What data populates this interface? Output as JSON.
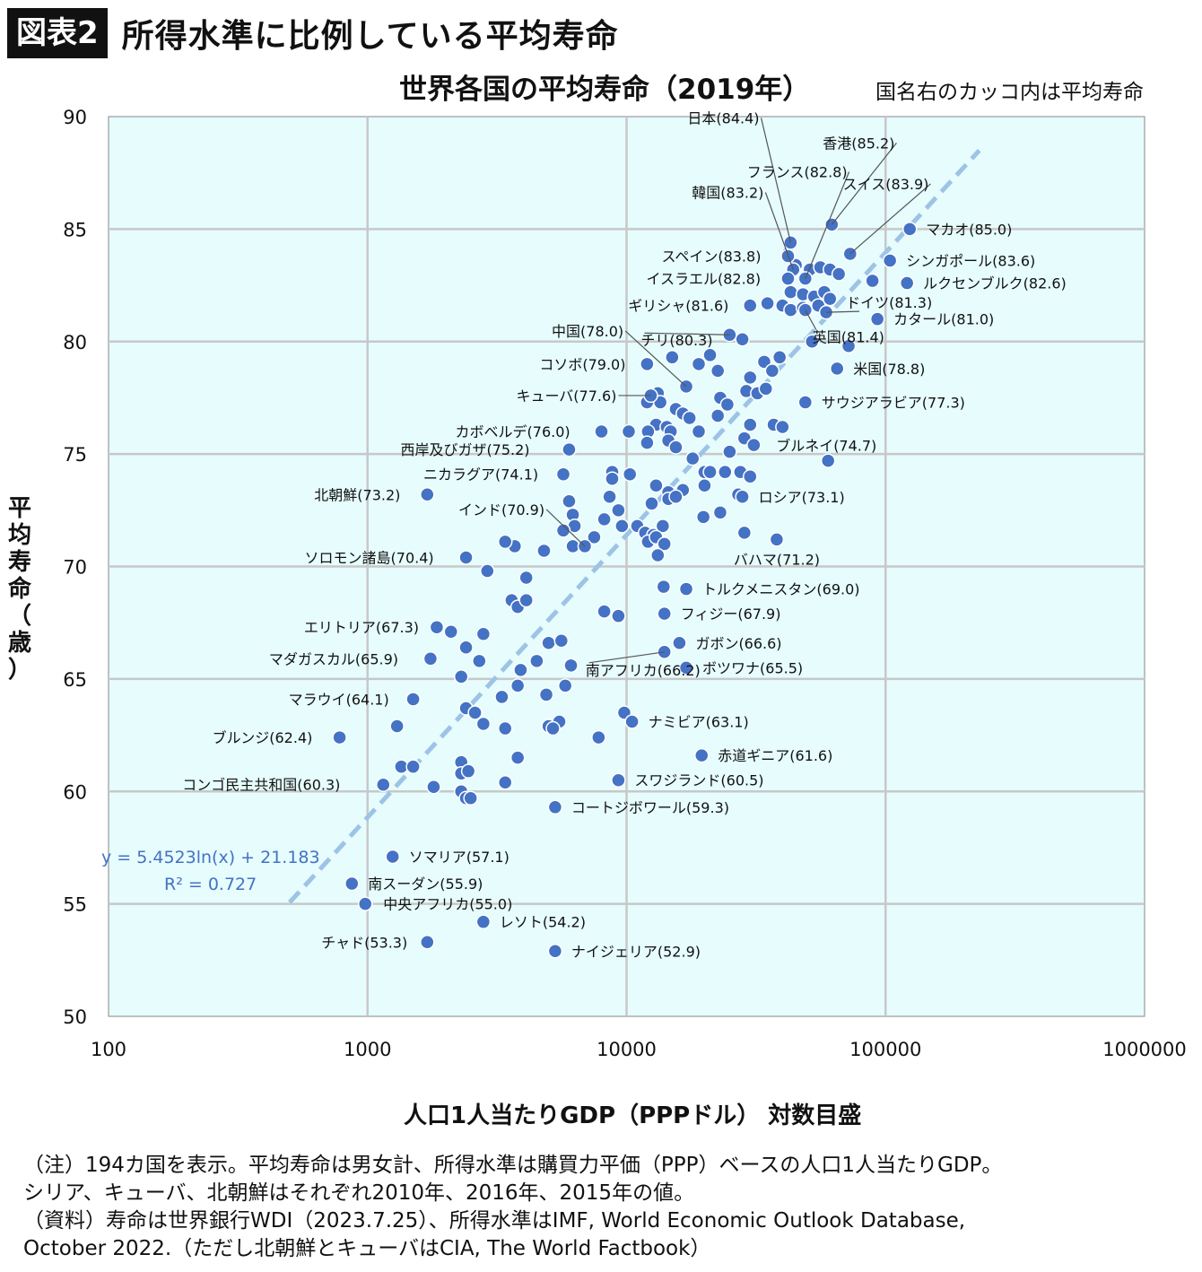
{
  "header": {
    "badge": "図表2",
    "title": "所得水準に比例している平均寿命"
  },
  "notes": [
    "（注）194カ国を表示。平均寿命は男女計、所得水準は購買力平価（PPP）ベースの人口1人当たりGDP。",
    "シリア、キューバ、北朝鮮はそれぞれ2010年、2016年、2015年の値。",
    "（資料）寿命は世界銀行WDI（2023.7.25）、所得水準はIMF, World Economic Outlook Database,",
    "October 2022.（ただし北朝鮮とキューバはCIA, The World Factbook）"
  ],
  "colors": {
    "plot_bg": "#e6fcfd",
    "marker": "#4472c4",
    "trend": "#9dc3e6",
    "grid": "#c8c8c8",
    "equation": "#4472c4"
  },
  "chart_data": {
    "type": "scatter",
    "title": "世界各国の平均寿命（2019年）",
    "subtitle": "国名右のカッコ内は平均寿命",
    "xlabel": "人口1人当たりGDP（PPPドル） 対数目盛",
    "ylabel": "平均寿命（歳）",
    "x_scale": "log",
    "xlim": [
      100,
      1000000
    ],
    "ylim": [
      50,
      90
    ],
    "x_ticks": [
      "100",
      "1000",
      "10000",
      "100000",
      "1000000"
    ],
    "y_ticks": [
      "50",
      "55",
      "60",
      "65",
      "70",
      "75",
      "80",
      "85",
      "90"
    ],
    "grid": true,
    "trendline": {
      "type": "log",
      "slope": 5.4523,
      "intercept": 21.183,
      "x_range": [
        500,
        230000
      ],
      "equation": "y = 5.4523ln(x) + 21.183",
      "r2_label": "R² = 0.727"
    },
    "labeled_points": [
      {
        "label": "香港(85.2)",
        "x": 62000,
        "y": 85.2
      },
      {
        "label": "フランス(82.8)",
        "x": 49000,
        "y": 82.8
      },
      {
        "label": "スイス(83.9)",
        "x": 73000,
        "y": 83.9
      },
      {
        "label": "日本(84.4)",
        "x": 43000,
        "y": 84.4
      },
      {
        "label": "マカオ(85.0)",
        "x": 124000,
        "y": 85.0
      },
      {
        "label": "韓国(83.2)",
        "x": 44000,
        "y": 83.2
      },
      {
        "label": "スペイン(83.8)",
        "x": 42000,
        "y": 83.8
      },
      {
        "label": "シンガポール(83.6)",
        "x": 104000,
        "y": 83.6
      },
      {
        "label": "イスラエル(82.8)",
        "x": 42000,
        "y": 82.8
      },
      {
        "label": "ルクセンブルク(82.6)",
        "x": 121000,
        "y": 82.6
      },
      {
        "label": "ギリシャ(81.6)",
        "x": 30000,
        "y": 81.6
      },
      {
        "label": "ドイツ(81.3)",
        "x": 59000,
        "y": 81.3
      },
      {
        "label": "カタール(81.0)",
        "x": 93000,
        "y": 81.0
      },
      {
        "label": "英国(81.4)",
        "x": 49000,
        "y": 81.4
      },
      {
        "label": "中国(78.0)",
        "x": 17000,
        "y": 78.0
      },
      {
        "label": "チリ(80.3)",
        "x": 25000,
        "y": 80.3
      },
      {
        "label": "米国(78.8)",
        "x": 65000,
        "y": 78.8
      },
      {
        "label": "コソボ(79.0)",
        "x": 12000,
        "y": 79.0
      },
      {
        "label": "キューバ(77.6)",
        "x": 12400,
        "y": 77.6
      },
      {
        "label": "サウジアラビア(77.3)",
        "x": 49000,
        "y": 77.3
      },
      {
        "label": "カボベルデ(76.0)",
        "x": 8000,
        "y": 76.0
      },
      {
        "label": "西岸及びガザ(75.2)",
        "x": 6000,
        "y": 75.2
      },
      {
        "label": "ブルネイ(74.7)",
        "x": 60000,
        "y": 74.7
      },
      {
        "label": "ニカラグア(74.1)",
        "x": 5700,
        "y": 74.1
      },
      {
        "label": "北朝鮮(73.2)",
        "x": 1700,
        "y": 73.2
      },
      {
        "label": "ロシア(73.1)",
        "x": 28000,
        "y": 73.1
      },
      {
        "label": "インド(70.9)",
        "x": 6900,
        "y": 70.9
      },
      {
        "label": "バハマ(71.2)",
        "x": 38000,
        "y": 71.2
      },
      {
        "label": "ソロモン諸島(70.4)",
        "x": 2400,
        "y": 70.4
      },
      {
        "label": "トルクメニスタン(69.0)",
        "x": 17000,
        "y": 69.0
      },
      {
        "label": "フィジー(67.9)",
        "x": 14000,
        "y": 67.9
      },
      {
        "label": "エリトリア(67.3)",
        "x": 1850,
        "y": 67.3
      },
      {
        "label": "ガボン(66.6)",
        "x": 16000,
        "y": 66.6
      },
      {
        "label": "マダガスカル(65.9)",
        "x": 1750,
        "y": 65.9
      },
      {
        "label": "南アフリカ(66.2)",
        "x": 14000,
        "y": 66.2
      },
      {
        "label": "ボツワナ(65.5)",
        "x": 17000,
        "y": 65.5
      },
      {
        "label": "マラウイ(64.1)",
        "x": 1500,
        "y": 64.1
      },
      {
        "label": "ナミビア(63.1)",
        "x": 10500,
        "y": 63.1
      },
      {
        "label": "ブルンジ(62.4)",
        "x": 780,
        "y": 62.4
      },
      {
        "label": "赤道ギニア(61.6)",
        "x": 19500,
        "y": 61.6
      },
      {
        "label": "スワジランド(60.5)",
        "x": 9300,
        "y": 60.5
      },
      {
        "label": "コンゴ民主共和国(60.3)",
        "x": 1150,
        "y": 60.3
      },
      {
        "label": "コートジボワール(59.3)",
        "x": 5300,
        "y": 59.3
      },
      {
        "label": "ソマリア(57.1)",
        "x": 1250,
        "y": 57.1
      },
      {
        "label": "南スーダン(55.9)",
        "x": 870,
        "y": 55.9
      },
      {
        "label": "中央アフリカ(55.0)",
        "x": 980,
        "y": 55.0
      },
      {
        "label": "レソト(54.2)",
        "x": 2800,
        "y": 54.2
      },
      {
        "label": "チャド(53.3)",
        "x": 1700,
        "y": 53.3
      },
      {
        "label": "ナイジェリア(52.9)",
        "x": 5300,
        "y": 52.9
      }
    ],
    "other_points": [
      [
        42000,
        83.9
      ],
      [
        45000,
        83.4
      ],
      [
        51000,
        83.2
      ],
      [
        56000,
        83.3
      ],
      [
        61000,
        83.2
      ],
      [
        66000,
        83.0
      ],
      [
        43000,
        82.2
      ],
      [
        48000,
        82.1
      ],
      [
        53000,
        82.0
      ],
      [
        58000,
        82.2
      ],
      [
        89000,
        82.7
      ],
      [
        35000,
        81.7
      ],
      [
        40000,
        81.6
      ],
      [
        43000,
        81.4
      ],
      [
        48000,
        81.5
      ],
      [
        55000,
        81.6
      ],
      [
        61000,
        81.9
      ],
      [
        52000,
        80.0
      ],
      [
        28000,
        80.1
      ],
      [
        72000,
        79.8
      ],
      [
        15000,
        79.3
      ],
      [
        19000,
        79.0
      ],
      [
        21000,
        79.4
      ],
      [
        22500,
        78.7
      ],
      [
        30000,
        78.4
      ],
      [
        34000,
        79.1
      ],
      [
        39000,
        79.3
      ],
      [
        13200,
        77.7
      ],
      [
        13500,
        77.3
      ],
      [
        15500,
        77.0
      ],
      [
        23000,
        77.5
      ],
      [
        24500,
        77.2
      ],
      [
        29000,
        77.8
      ],
      [
        32000,
        77.7
      ],
      [
        34500,
        77.9
      ],
      [
        36500,
        78.7
      ],
      [
        12000,
        77.3
      ],
      [
        13000,
        76.3
      ],
      [
        14300,
        76.2
      ],
      [
        14800,
        76.0
      ],
      [
        16500,
        76.8
      ],
      [
        17500,
        76.6
      ],
      [
        19000,
        76.0
      ],
      [
        22500,
        76.7
      ],
      [
        30000,
        76.3
      ],
      [
        37000,
        76.3
      ],
      [
        40000,
        76.2
      ],
      [
        10200,
        76.0
      ],
      [
        12100,
        76.0
      ],
      [
        12000,
        75.5
      ],
      [
        14500,
        75.6
      ],
      [
        15500,
        75.3
      ],
      [
        18000,
        74.8
      ],
      [
        25000,
        75.1
      ],
      [
        28500,
        75.7
      ],
      [
        31000,
        75.4
      ],
      [
        8800,
        74.2
      ],
      [
        10300,
        74.1
      ],
      [
        20000,
        74.2
      ],
      [
        21000,
        74.2
      ],
      [
        24000,
        74.2
      ],
      [
        27500,
        74.2
      ],
      [
        30000,
        74.0
      ],
      [
        8800,
        73.9
      ],
      [
        13000,
        73.6
      ],
      [
        14500,
        73.3
      ],
      [
        16500,
        73.4
      ],
      [
        20000,
        73.6
      ],
      [
        27000,
        73.2
      ],
      [
        6000,
        72.9
      ],
      [
        8600,
        73.1
      ],
      [
        12500,
        72.8
      ],
      [
        14500,
        73.0
      ],
      [
        15500,
        73.1
      ],
      [
        6200,
        72.3
      ],
      [
        6300,
        71.8
      ],
      [
        7500,
        71.3
      ],
      [
        8200,
        72.1
      ],
      [
        9300,
        72.5
      ],
      [
        9600,
        71.8
      ],
      [
        11000,
        71.8
      ],
      [
        11800,
        71.5
      ],
      [
        12700,
        71.4
      ],
      [
        13800,
        71.8
      ],
      [
        19800,
        72.2
      ],
      [
        23000,
        72.4
      ],
      [
        5700,
        71.6
      ],
      [
        3700,
        70.9
      ],
      [
        4800,
        70.7
      ],
      [
        6200,
        70.9
      ],
      [
        12100,
        71.1
      ],
      [
        13000,
        71.3
      ],
      [
        14000,
        71.0
      ],
      [
        28500,
        71.5
      ],
      [
        3400,
        71.1
      ],
      [
        13200,
        70.5
      ],
      [
        2900,
        69.8
      ],
      [
        4100,
        69.5
      ],
      [
        3600,
        68.5
      ],
      [
        3800,
        68.2
      ],
      [
        4100,
        68.5
      ],
      [
        8200,
        68.0
      ],
      [
        9300,
        67.8
      ],
      [
        13900,
        69.1
      ],
      [
        2100,
        67.1
      ],
      [
        2800,
        67.0
      ],
      [
        5000,
        66.6
      ],
      [
        5600,
        66.7
      ],
      [
        2400,
        66.4
      ],
      [
        2700,
        65.8
      ],
      [
        6100,
        65.6
      ],
      [
        3900,
        65.4
      ],
      [
        4500,
        65.8
      ],
      [
        2300,
        65.1
      ],
      [
        3800,
        64.7
      ],
      [
        4900,
        64.3
      ],
      [
        5800,
        64.7
      ],
      [
        2400,
        63.7
      ],
      [
        3300,
        64.2
      ],
      [
        2600,
        63.5
      ],
      [
        5000,
        62.9
      ],
      [
        5500,
        63.1
      ],
      [
        2800,
        63.0
      ],
      [
        3400,
        62.8
      ],
      [
        1300,
        62.9
      ],
      [
        5200,
        62.8
      ],
      [
        7800,
        62.4
      ],
      [
        9800,
        63.5
      ],
      [
        1350,
        61.1
      ],
      [
        1500,
        61.1
      ],
      [
        2300,
        61.3
      ],
      [
        2300,
        60.8
      ],
      [
        2450,
        60.9
      ],
      [
        3800,
        61.5
      ],
      [
        1800,
        60.2
      ],
      [
        2300,
        60.0
      ],
      [
        2400,
        59.7
      ],
      [
        2500,
        59.7
      ],
      [
        3400,
        60.4
      ]
    ]
  }
}
